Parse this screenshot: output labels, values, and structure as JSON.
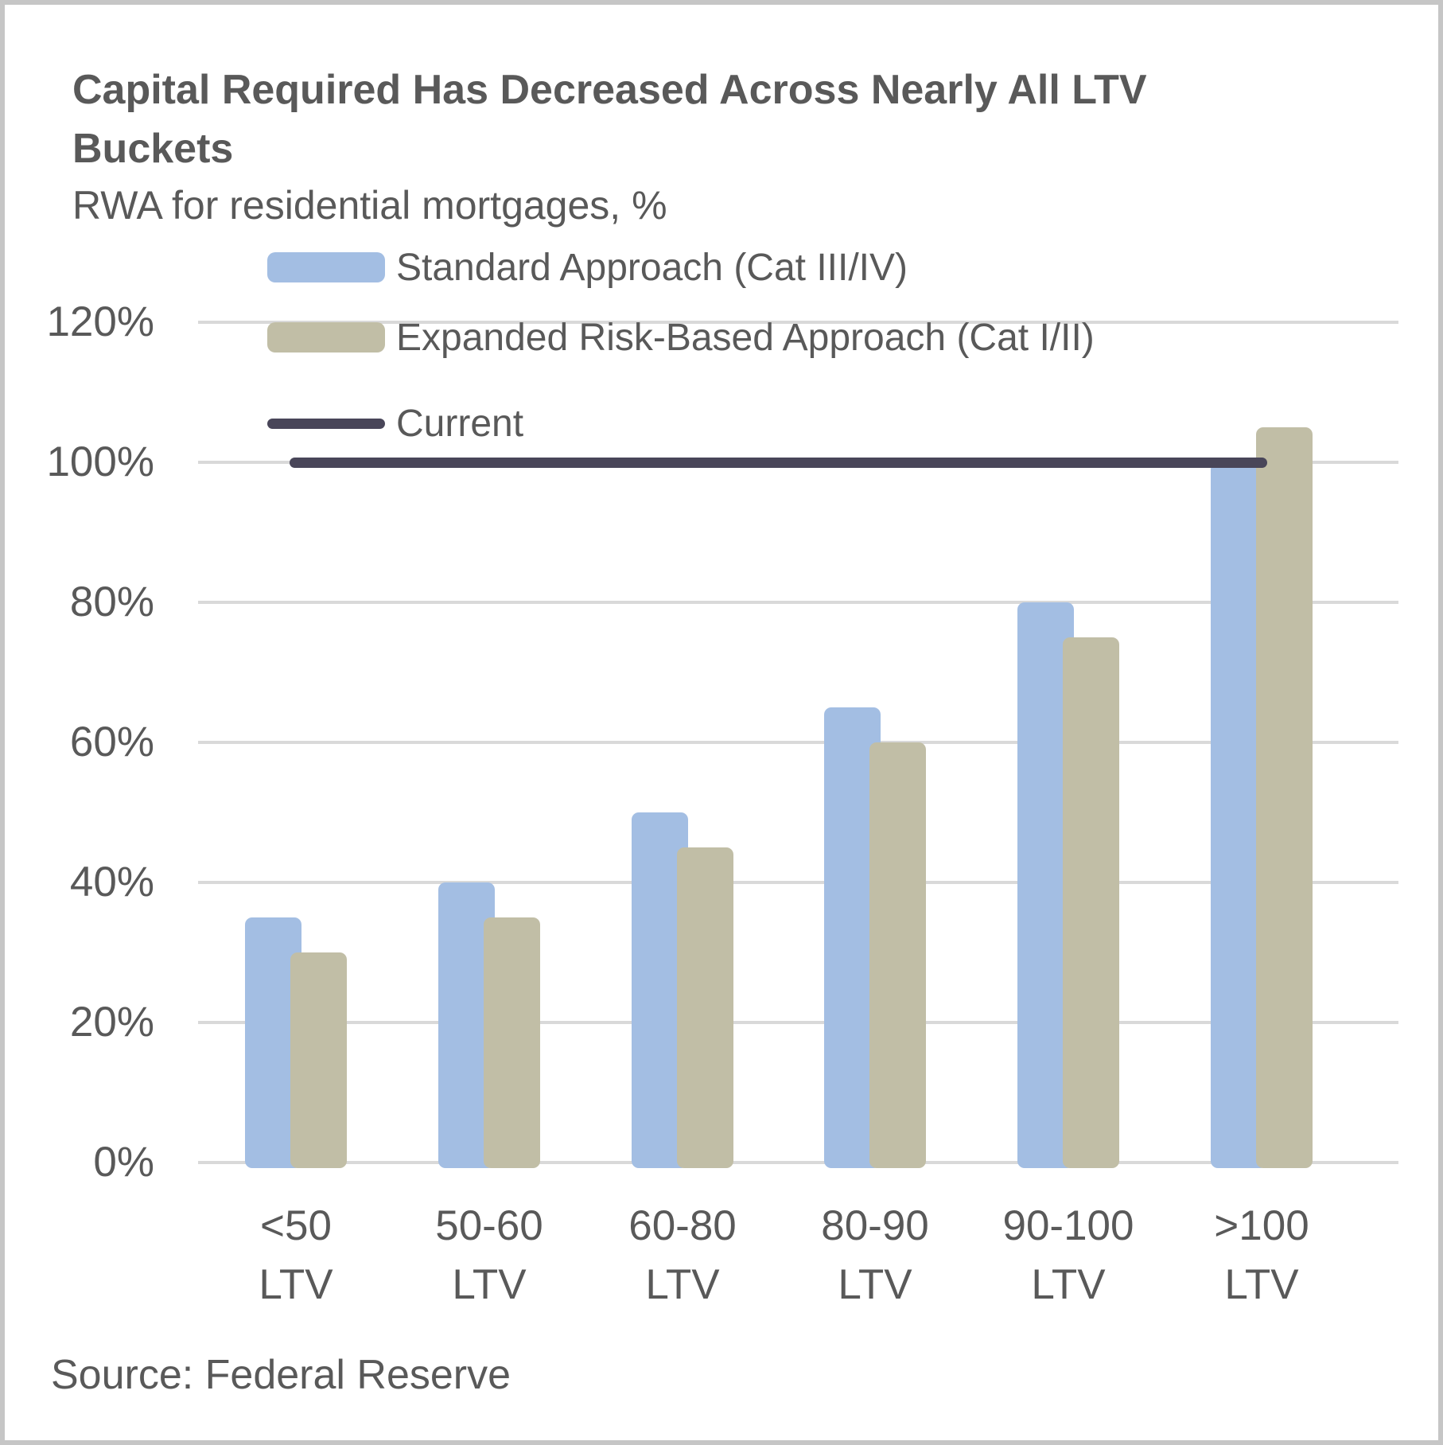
{
  "window": {
    "background": "#ffffff",
    "border_color": "#c6c6c6"
  },
  "header": {
    "title": "Capital Required Has Decreased Across Nearly All LTV Buckets",
    "subtitle": "RWA for residential mortgages, %"
  },
  "footer": {
    "source": "Source: Federal Reserve"
  },
  "chart_data": {
    "type": "bar",
    "title": "Capital Required Has Decreased Across Nearly All LTV Buckets",
    "subtitle": "RWA for residential mortgages, %",
    "xlabel": "",
    "ylabel": "",
    "categories": [
      "<50 LTV",
      "50-60 LTV",
      "60-80 LTV",
      "80-90 LTV",
      "90-100 LTV",
      ">100 LTV"
    ],
    "category_label_lines": [
      [
        "<50",
        "LTV"
      ],
      [
        "50-60",
        "LTV"
      ],
      [
        "60-80",
        "LTV"
      ],
      [
        "80-90",
        "LTV"
      ],
      [
        "90-100",
        "LTV"
      ],
      [
        ">100",
        "LTV"
      ]
    ],
    "series": [
      {
        "name": "Standard Approach (Cat III/IV)",
        "kind": "bar",
        "color": "#a3bee3",
        "values": [
          35,
          40,
          50,
          65,
          80,
          100
        ]
      },
      {
        "name": "Expanded Risk-Based Approach (Cat I/II)",
        "kind": "bar",
        "color": "#c1bea6",
        "values": [
          30,
          35,
          45,
          60,
          75,
          105
        ]
      },
      {
        "name": "Current",
        "kind": "line",
        "color": "#494659",
        "values": [
          100,
          100,
          100,
          100,
          100,
          100
        ]
      }
    ],
    "y_axis": {
      "min": 0,
      "max": 120,
      "step": 20,
      "tick_labels": [
        "0%",
        "20%",
        "40%",
        "60%",
        "80%",
        "100%",
        "120%"
      ]
    },
    "ylim": [
      0,
      120
    ],
    "grid": true,
    "legend_position": "top-left",
    "colors": {
      "gridline": "#d9d9d9",
      "text": "#595959"
    }
  }
}
